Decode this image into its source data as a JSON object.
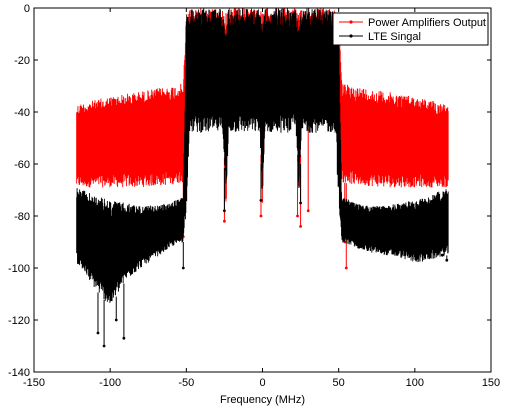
{
  "chart_data": {
    "type": "line",
    "title": "",
    "xlabel": "Frequency (MHz)",
    "ylabel": "",
    "xlim": [
      -150,
      150
    ],
    "ylim": [
      -140,
      0
    ],
    "xticks": [
      -150,
      -100,
      -50,
      0,
      50,
      100,
      150
    ],
    "yticks": [
      -140,
      -120,
      -100,
      -80,
      -60,
      -40,
      -20,
      0
    ],
    "grid": false,
    "legend_position": "top-right",
    "series": [
      {
        "name": "Power Amplifiers Output",
        "color": "#ff0000",
        "marker": "dot",
        "envelope": {
          "x": [
            -122,
            -100,
            -80,
            -60,
            -52,
            -50,
            -48,
            -26,
            -24,
            -22,
            -2,
            0,
            2,
            22,
            24,
            26,
            48,
            50,
            52,
            60,
            80,
            100,
            122
          ],
          "upper": [
            -37,
            -34,
            -32,
            -30,
            -29,
            -2,
            0,
            0,
            -2,
            0,
            0,
            -2,
            0,
            0,
            -2,
            0,
            0,
            -2,
            -29,
            -30,
            -32,
            -34,
            -37
          ],
          "lower": [
            -69,
            -69,
            -69,
            -68,
            -67,
            -60,
            -35,
            -35,
            -80,
            -35,
            -35,
            -78,
            -35,
            -35,
            -78,
            -35,
            -35,
            -60,
            -67,
            -68,
            -69,
            -69,
            -69
          ]
        },
        "dips": [
          [
            -52,
            -88
          ],
          [
            -25,
            -82
          ],
          [
            -1,
            -80
          ],
          [
            23,
            -80
          ],
          [
            25,
            -84
          ],
          [
            30,
            -78
          ],
          [
            55,
            -100
          ],
          [
            54,
            -90
          ]
        ]
      },
      {
        "name": "LTE Singal",
        "color": "#000000",
        "marker": "dot",
        "envelope": {
          "x": [
            -122,
            -110,
            -100,
            -90,
            -80,
            -70,
            -60,
            -52,
            -50,
            -48,
            -26,
            -24,
            -22,
            -2,
            0,
            2,
            22,
            24,
            26,
            48,
            50,
            52,
            60,
            70,
            80,
            90,
            100,
            110,
            122
          ],
          "upper": [
            -69,
            -72,
            -74,
            -75,
            -76,
            -76,
            -75,
            -72,
            -2,
            0,
            0,
            -3,
            0,
            0,
            -3,
            0,
            0,
            -3,
            0,
            0,
            -2,
            -72,
            -75,
            -76,
            -76,
            -75,
            -74,
            -72,
            -69
          ],
          "lower": [
            -98,
            -108,
            -115,
            -105,
            -100,
            -96,
            -92,
            -90,
            -78,
            -48,
            -48,
            -75,
            -48,
            -48,
            -72,
            -48,
            -48,
            -72,
            -48,
            -48,
            -78,
            -90,
            -92,
            -94,
            -95,
            -96,
            -98,
            -97,
            -95
          ]
        },
        "dips": [
          [
            -108,
            -125
          ],
          [
            -104,
            -130
          ],
          [
            -96,
            -120
          ],
          [
            -91,
            -127
          ],
          [
            -52,
            -100
          ],
          [
            -25,
            -78
          ],
          [
            -1,
            -74
          ],
          [
            25,
            -75
          ],
          [
            105,
            -88
          ],
          [
            118,
            -95
          ],
          [
            121,
            -97
          ]
        ]
      }
    ]
  }
}
